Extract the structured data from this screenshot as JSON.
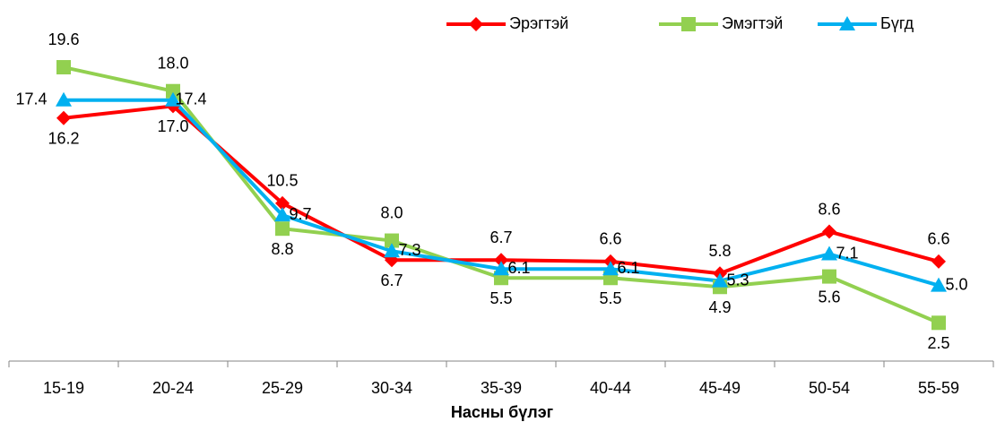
{
  "chart_data": {
    "type": "line",
    "x_label": "Насны бүлэг",
    "categories": [
      "15-19",
      "20-24",
      "25-29",
      "30-34",
      "35-39",
      "40-44",
      "45-49",
      "50-54",
      "55-59"
    ],
    "series": [
      {
        "name": "Эрэгтэй",
        "color": "#ff0000",
        "marker": "diamond",
        "values": [
          16.2,
          17.0,
          10.5,
          6.7,
          6.7,
          6.6,
          5.8,
          8.6,
          6.6
        ]
      },
      {
        "name": "Эмэгтэй",
        "color": "#92d050",
        "marker": "square",
        "values": [
          19.6,
          18.0,
          8.8,
          8.0,
          5.5,
          5.5,
          4.9,
          5.6,
          2.5
        ]
      },
      {
        "name": "Бүгд",
        "color": "#00b0f0",
        "marker": "triangle",
        "values": [
          17.4,
          17.4,
          9.7,
          7.3,
          6.1,
          6.1,
          5.3,
          7.1,
          5.0
        ]
      }
    ],
    "value_labels": [
      [
        "16.2",
        "17.0",
        "10.5",
        "6.7",
        "6.7",
        "6.6",
        "5.8",
        "8.6",
        "6.6"
      ],
      [
        "19.6",
        "18.0",
        "8.8",
        "8.0",
        "5.5",
        "5.5",
        "4.9",
        "5.6",
        "2.5"
      ],
      [
        "17.4",
        "17.4",
        "9.7",
        "7.3",
        "6.1",
        "6.1",
        "5.3",
        "7.1",
        "5.0"
      ]
    ],
    "ylim": [
      0,
      22
    ],
    "legend": "top-right"
  }
}
